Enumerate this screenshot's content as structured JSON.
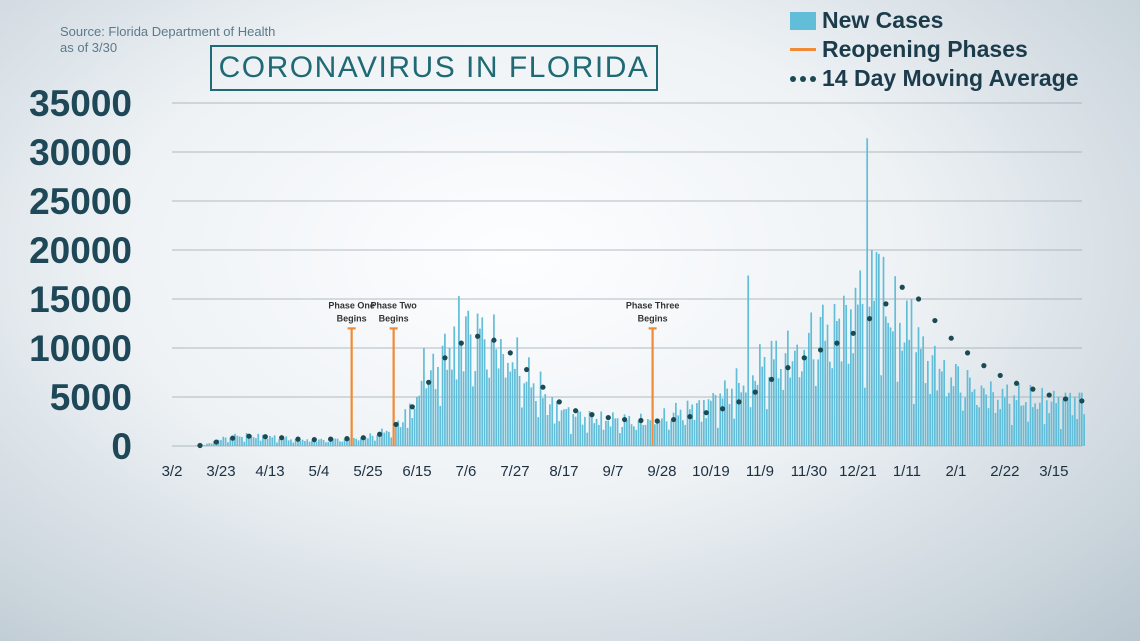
{
  "source_line1": "Source: Florida Department of Health",
  "source_line2": "as of 3/30",
  "title": "CORONAVIRUS IN FLORIDA",
  "legend": {
    "new_cases": "New Cases",
    "reopening_phases": "Reopening Phases",
    "moving_average": "14 Day Moving Average"
  },
  "colors": {
    "bars": "#62bdd8",
    "phase_lines": "#f08a35",
    "moving_average": "#1b4a52",
    "title": "#1f6a74",
    "axis_text": "#1e4858"
  },
  "chart_data": {
    "type": "bar",
    "title": "CORONAVIRUS IN FLORIDA",
    "xlabel": "",
    "ylabel": "",
    "ylim": [
      0,
      35000
    ],
    "yticks": [
      0,
      5000,
      10000,
      15000,
      20000,
      25000,
      30000,
      35000
    ],
    "x_start_date": "2020-03-02",
    "x_tick_labels": [
      "3/2",
      "3/23",
      "4/13",
      "5/4",
      "5/25",
      "6/15",
      "7/6",
      "7/27",
      "8/17",
      "9/7",
      "9/28",
      "10/19",
      "11/9",
      "11/30",
      "12/21",
      "1/11",
      "2/1",
      "2/22",
      "3/15"
    ],
    "grid": true,
    "series": [
      {
        "name": "New Cases",
        "type": "bar",
        "anchors": [
          [
            0,
            0
          ],
          [
            7,
            20
          ],
          [
            14,
            150
          ],
          [
            21,
            700
          ],
          [
            28,
            1000
          ],
          [
            35,
            1050
          ],
          [
            42,
            900
          ],
          [
            49,
            750
          ],
          [
            56,
            650
          ],
          [
            63,
            600
          ],
          [
            70,
            700
          ],
          [
            77,
            750
          ],
          [
            84,
            900
          ],
          [
            91,
            1400
          ],
          [
            98,
            2500
          ],
          [
            105,
            4500
          ],
          [
            112,
            7500
          ],
          [
            119,
            10000
          ],
          [
            126,
            11000
          ],
          [
            133,
            11500
          ],
          [
            140,
            10500
          ],
          [
            147,
            8500
          ],
          [
            154,
            6500
          ],
          [
            161,
            4500
          ],
          [
            168,
            3500
          ],
          [
            175,
            3000
          ],
          [
            182,
            2800
          ],
          [
            189,
            2700
          ],
          [
            196,
            2600
          ],
          [
            203,
            2600
          ],
          [
            210,
            2800
          ],
          [
            217,
            3500
          ],
          [
            224,
            4000
          ],
          [
            231,
            4500
          ],
          [
            238,
            5500
          ],
          [
            245,
            6500
          ],
          [
            252,
            8000
          ],
          [
            259,
            9000
          ],
          [
            266,
            9500
          ],
          [
            273,
            10500
          ],
          [
            280,
            12000
          ],
          [
            287,
            13000
          ],
          [
            294,
            14500
          ],
          [
            301,
            15500
          ],
          [
            308,
            13500
          ],
          [
            315,
            11500
          ],
          [
            322,
            9500
          ],
          [
            329,
            8000
          ],
          [
            336,
            7000
          ],
          [
            343,
            6000
          ],
          [
            350,
            5500
          ],
          [
            357,
            5000
          ],
          [
            364,
            4800
          ],
          [
            371,
            4500
          ],
          [
            378,
            4500
          ],
          [
            385,
            4800
          ],
          [
            391,
            4800
          ]
        ],
        "spikes": [
          [
            108,
            10000
          ],
          [
            123,
            15300
          ],
          [
            127,
            13800
          ],
          [
            158,
            7600
          ],
          [
            247,
            17400
          ],
          [
            286,
            13000
          ],
          [
            298,
            31400
          ],
          [
            302,
            19800
          ],
          [
            303,
            19600
          ],
          [
            317,
            15000
          ],
          [
            334,
            7000
          ]
        ]
      },
      {
        "name": "14 Day Moving Average",
        "type": "dotted-line",
        "points": [
          [
            12,
            50
          ],
          [
            19,
            400
          ],
          [
            26,
            800
          ],
          [
            33,
            1000
          ],
          [
            40,
            950
          ],
          [
            47,
            850
          ],
          [
            54,
            700
          ],
          [
            61,
            650
          ],
          [
            68,
            700
          ],
          [
            75,
            750
          ],
          [
            82,
            850
          ],
          [
            89,
            1200
          ],
          [
            96,
            2200
          ],
          [
            103,
            4000
          ],
          [
            110,
            6500
          ],
          [
            117,
            9000
          ],
          [
            124,
            10500
          ],
          [
            131,
            11200
          ],
          [
            138,
            10800
          ],
          [
            145,
            9500
          ],
          [
            152,
            7800
          ],
          [
            159,
            6000
          ],
          [
            166,
            4500
          ],
          [
            173,
            3600
          ],
          [
            180,
            3200
          ],
          [
            187,
            2900
          ],
          [
            194,
            2700
          ],
          [
            201,
            2600
          ],
          [
            208,
            2550
          ],
          [
            215,
            2700
          ],
          [
            222,
            3000
          ],
          [
            229,
            3400
          ],
          [
            236,
            3800
          ],
          [
            243,
            4500
          ],
          [
            250,
            5500
          ],
          [
            257,
            6800
          ],
          [
            264,
            8000
          ],
          [
            271,
            9000
          ],
          [
            278,
            9800
          ],
          [
            285,
            10500
          ],
          [
            292,
            11500
          ],
          [
            299,
            13000
          ],
          [
            306,
            14500
          ],
          [
            313,
            16200
          ],
          [
            320,
            15000
          ],
          [
            327,
            12800
          ],
          [
            334,
            11000
          ],
          [
            341,
            9500
          ],
          [
            348,
            8200
          ],
          [
            355,
            7200
          ],
          [
            362,
            6400
          ],
          [
            369,
            5800
          ],
          [
            376,
            5200
          ],
          [
            383,
            4800
          ],
          [
            390,
            4600
          ]
        ]
      }
    ],
    "phases": [
      {
        "label_line1": "Phase One",
        "label_line2": "Begins",
        "day": 77
      },
      {
        "label_line1": "Phase Two",
        "label_line2": "Begins",
        "day": 95
      },
      {
        "label_line1": "Phase Three",
        "label_line2": "Begins",
        "day": 206
      }
    ]
  }
}
